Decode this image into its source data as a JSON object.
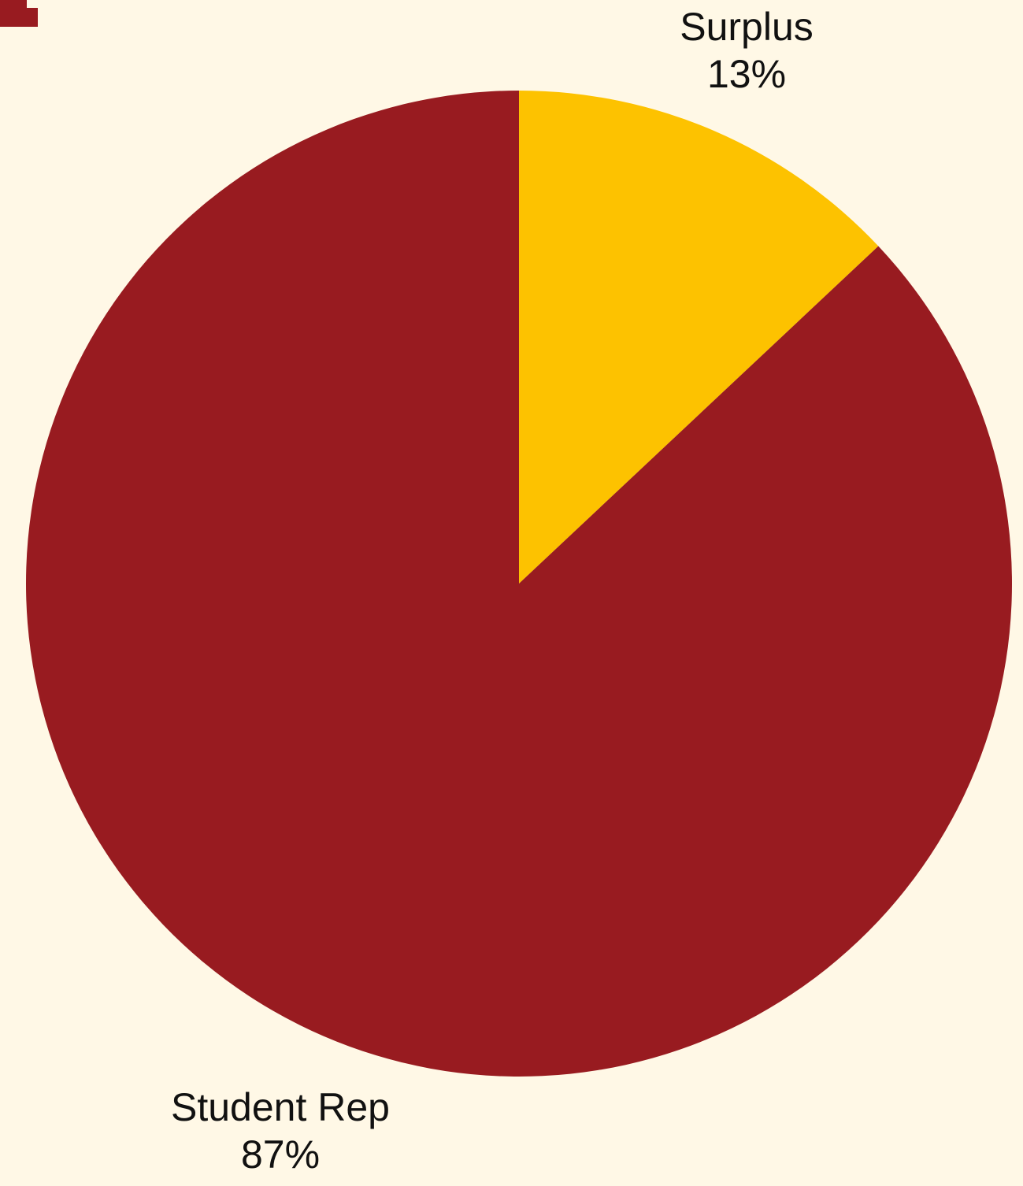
{
  "page": {
    "background_color": "#fff8e6",
    "accent_color": "#981b20"
  },
  "chart_data": {
    "type": "pie",
    "start_angle_deg": 0,
    "direction": "clockwise",
    "slices": [
      {
        "label": "Surplus",
        "value": 13,
        "value_label": "13%",
        "color": "#fdc200"
      },
      {
        "label": "Student Rep",
        "value": 87,
        "value_label": "87%",
        "color": "#981b20"
      }
    ]
  }
}
